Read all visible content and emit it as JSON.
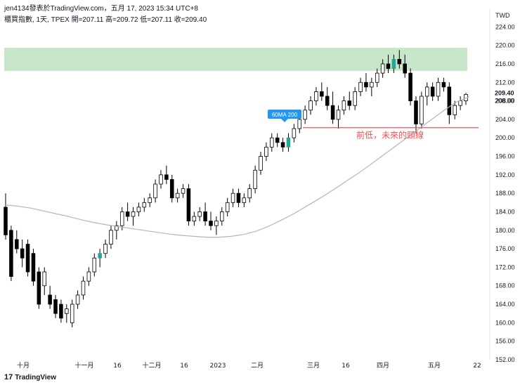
{
  "header": {
    "publisher_line": "jen4134發表於TradingView.com，五月 17, 2023 15:34 UTC+8",
    "ohlc_line": "櫃買指數, 1天, TPEX  開=207.11  高=209.72  低=207.11  收=209.40"
  },
  "footer": {
    "logo_mark": "17",
    "brand": "TradingView"
  },
  "colors": {
    "up": "#ffffff",
    "down": "#000000",
    "green_bar": "#26a69a",
    "zone_fill": "#c8e6c9",
    "support_line": "#ef5350",
    "ma_line": "#b2b5be",
    "callout_bg": "#2196f3",
    "support_text": "#ef5350"
  },
  "annotations": {
    "ma_callout": "60MA 200",
    "support_label": "前低，未來的頸線"
  },
  "chart_data": {
    "type": "candlestick",
    "currency": "TWD",
    "ylim": [
      152,
      228
    ],
    "yticks": [
      "224.00",
      "220.00",
      "216.00",
      "212.00",
      "208.00",
      "204.00",
      "200.00",
      "196.00",
      "192.00",
      "188.00",
      "184.00",
      "180.00",
      "176.00",
      "172.00",
      "168.00",
      "164.00",
      "160.00",
      "156.00",
      "152.00"
    ],
    "last_price_label": "209.40",
    "secondary_price_label": "208.00",
    "xticks": [
      "十月",
      "十一月",
      "16",
      "十二月",
      "16",
      "2023",
      "二月",
      "三月",
      "16",
      "四月",
      "五月",
      "22"
    ],
    "resistance_zone": [
      214.5,
      219.5
    ],
    "support_level": 202.2,
    "ohlc_values": {
      "open": 207.11,
      "high": 209.72,
      "low": 207.11,
      "close": 209.4
    },
    "candles": [
      [
        185,
        188,
        178,
        179
      ],
      [
        180,
        181,
        169,
        170
      ],
      [
        178,
        180,
        175,
        176
      ],
      [
        176,
        178,
        172,
        174
      ],
      [
        177,
        178,
        170,
        171
      ],
      [
        175,
        176,
        168,
        169
      ],
      [
        171,
        172,
        163,
        164
      ],
      [
        168,
        172,
        166,
        171
      ],
      [
        166,
        168,
        163,
        164
      ],
      [
        165,
        166,
        161,
        162
      ],
      [
        164,
        165,
        160,
        161
      ],
      [
        162,
        164,
        160,
        163
      ],
      [
        160,
        165,
        159,
        164
      ],
      [
        164,
        167,
        163,
        166
      ],
      [
        166,
        170,
        165,
        169
      ],
      [
        169,
        172,
        168,
        171
      ],
      [
        171,
        175,
        170,
        174
      ],
      [
        174,
        176,
        172,
        175
      ],
      [
        175,
        178,
        174,
        177
      ],
      [
        177,
        181,
        176,
        180
      ],
      [
        180,
        182,
        178,
        181
      ],
      [
        181,
        185,
        180,
        184
      ],
      [
        184,
        186,
        182,
        183
      ],
      [
        183,
        185,
        181,
        184
      ],
      [
        184,
        186,
        183,
        185
      ],
      [
        185,
        187,
        184,
        186
      ],
      [
        186,
        188,
        185,
        187
      ],
      [
        187,
        191,
        186,
        190
      ],
      [
        190,
        193,
        189,
        192
      ],
      [
        192,
        194,
        190,
        191
      ],
      [
        191,
        192,
        186,
        187
      ],
      [
        187,
        189,
        186,
        188
      ],
      [
        188,
        190,
        187,
        189
      ],
      [
        189,
        190,
        181,
        182
      ],
      [
        182,
        184,
        181,
        183
      ],
      [
        183,
        185,
        182,
        184
      ],
      [
        184,
        186,
        181,
        182
      ],
      [
        182,
        184,
        180,
        181
      ],
      [
        181,
        183,
        179,
        182
      ],
      [
        182,
        185,
        181,
        184
      ],
      [
        184,
        187,
        183,
        186
      ],
      [
        186,
        189,
        185,
        188
      ],
      [
        188,
        189,
        185,
        186
      ],
      [
        186,
        188,
        185,
        187
      ],
      [
        187,
        190,
        186,
        189
      ],
      [
        189,
        194,
        188,
        193
      ],
      [
        193,
        197,
        192,
        196
      ],
      [
        196,
        199,
        195,
        198
      ],
      [
        198,
        201,
        197,
        200
      ],
      [
        200,
        201,
        198,
        199
      ],
      [
        199,
        200,
        197,
        198
      ],
      [
        198,
        201,
        197,
        200
      ],
      [
        200,
        203,
        199,
        202
      ],
      [
        202,
        205,
        201,
        204
      ],
      [
        204,
        207,
        203,
        206
      ],
      [
        206,
        209,
        205,
        208
      ],
      [
        208,
        211,
        207,
        210
      ],
      [
        210,
        212,
        208,
        209
      ],
      [
        209,
        211,
        206,
        207
      ],
      [
        207,
        210,
        203,
        204
      ],
      [
        204,
        207,
        202,
        206
      ],
      [
        206,
        209,
        205,
        208
      ],
      [
        208,
        210,
        206,
        207
      ],
      [
        207,
        211,
        206,
        210
      ],
      [
        210,
        213,
        209,
        212
      ],
      [
        212,
        214,
        210,
        211
      ],
      [
        211,
        213,
        209,
        212
      ],
      [
        212,
        215,
        211,
        214
      ],
      [
        214,
        217,
        213,
        216
      ],
      [
        216,
        218,
        214,
        215
      ],
      [
        215,
        218,
        214,
        217
      ],
      [
        217,
        219,
        215,
        216
      ],
      [
        216,
        218,
        213,
        214
      ],
      [
        214,
        215,
        207,
        208
      ],
      [
        208,
        209,
        201,
        203
      ],
      [
        203,
        210,
        202,
        209
      ],
      [
        209,
        212,
        207,
        211
      ],
      [
        211,
        212,
        208,
        209
      ],
      [
        209,
        213,
        208,
        212
      ],
      [
        212,
        213,
        210,
        211
      ],
      [
        211,
        212,
        203,
        205
      ],
      [
        205,
        208,
        204,
        207
      ],
      [
        207,
        209,
        206,
        208
      ],
      [
        208,
        209.72,
        207.11,
        209.4
      ]
    ],
    "ma60": [
      [
        185.5,
        185.5
      ],
      [
        185.2,
        185.0
      ],
      [
        184.8,
        184.5
      ],
      [
        184.2,
        184.0
      ],
      [
        183.6,
        183.3
      ],
      [
        183.0,
        182.6
      ],
      [
        182.3,
        182.0
      ],
      [
        181.7,
        181.4
      ],
      [
        181.2,
        181.0
      ],
      [
        180.8,
        180.6
      ],
      [
        180.4,
        180.2
      ],
      [
        180.0,
        179.8
      ],
      [
        179.6,
        179.4
      ],
      [
        179.2,
        179.0
      ],
      [
        178.9,
        178.8
      ],
      [
        178.7,
        178.6
      ],
      [
        178.5,
        178.5
      ],
      [
        178.5,
        178.6
      ],
      [
        178.7,
        178.9
      ],
      [
        179.1,
        179.4
      ],
      [
        179.8,
        180.3
      ],
      [
        180.9,
        181.5
      ],
      [
        182.2,
        182.9
      ],
      [
        183.6,
        184.4
      ],
      [
        185.2,
        186.0
      ],
      [
        186.8,
        187.7
      ],
      [
        188.5,
        189.4
      ],
      [
        190.3,
        191.2
      ],
      [
        192.1,
        193.0
      ],
      [
        194.0,
        195.0
      ],
      [
        196.0,
        197.0
      ],
      [
        198.0,
        199.0
      ],
      [
        200.0,
        201.0
      ],
      [
        202.0,
        203.0
      ],
      [
        204.0,
        205.0
      ],
      [
        206.0,
        207.0
      ],
      [
        207.8,
        208.4
      ],
      [
        208.9,
        209.2
      ]
    ]
  }
}
